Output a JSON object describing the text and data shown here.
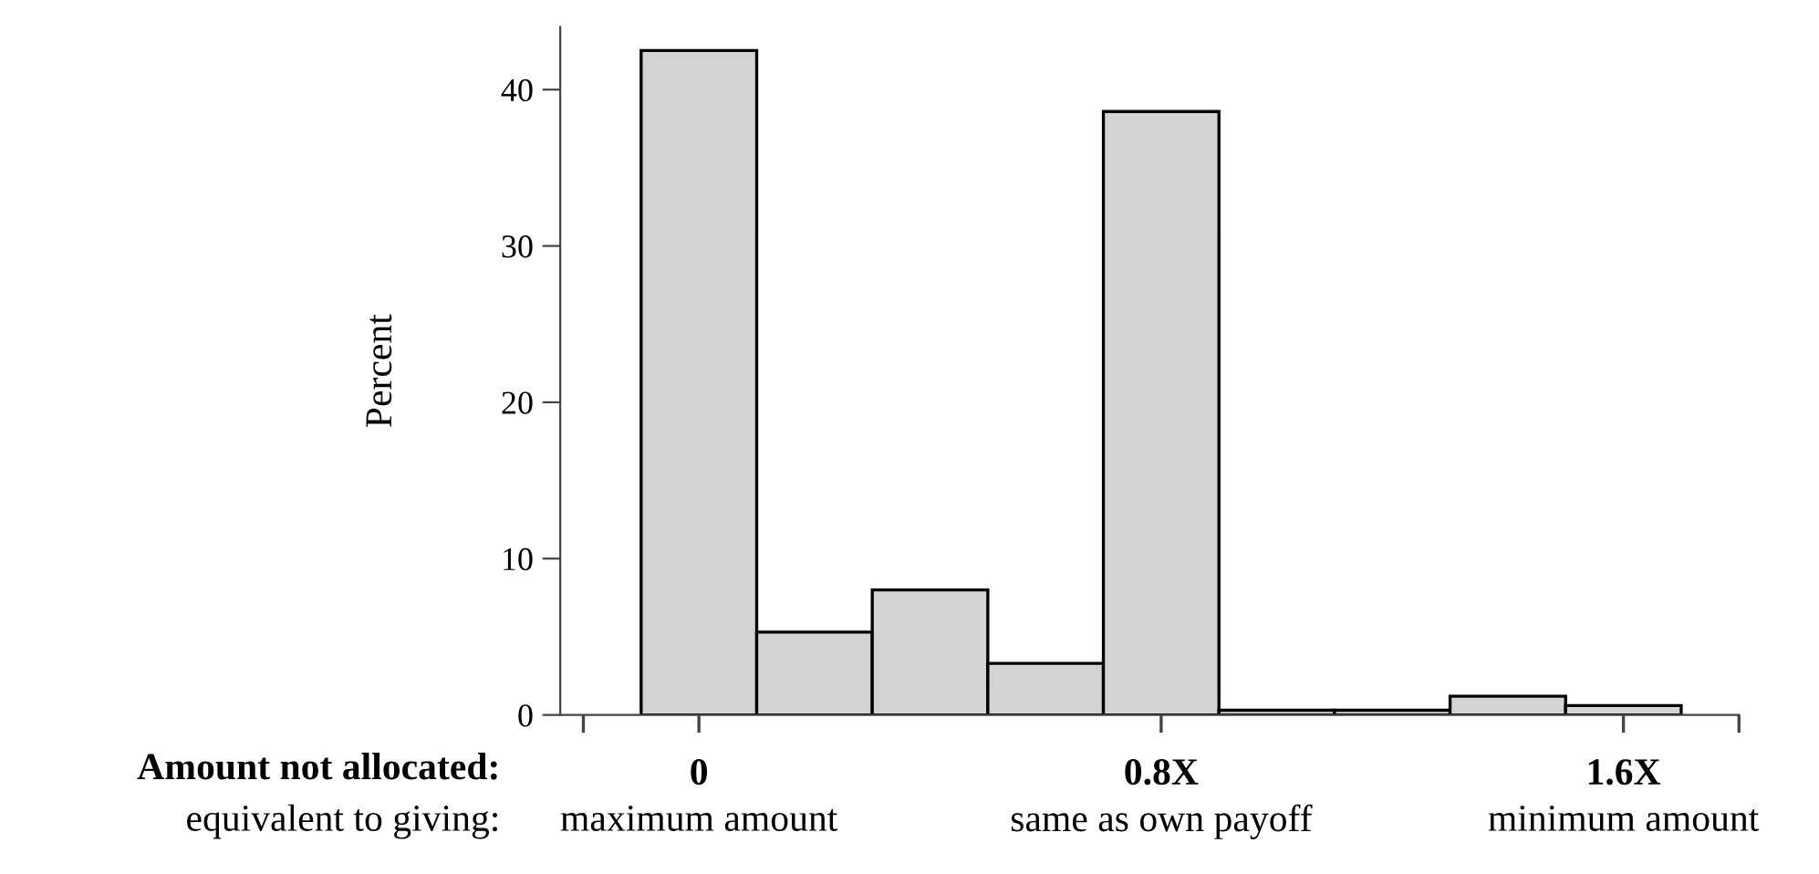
{
  "chart_data": {
    "type": "histogram",
    "ylabel": "Percent",
    "bins": [
      -0.1,
      0.1,
      0.3,
      0.5,
      0.7,
      0.9,
      1.1,
      1.3,
      1.5,
      1.7
    ],
    "values": [
      42.5,
      5.3,
      8.0,
      3.3,
      38.6,
      0.3,
      0.3,
      1.2,
      0.6
    ],
    "color": "#d3d3d3",
    "xlim": [
      -0.24,
      1.8
    ],
    "xticks": [
      {
        "value": -0.2,
        "label": null
      },
      {
        "value": 0,
        "label": "0"
      },
      {
        "value": 0.8,
        "label": "0.8X"
      },
      {
        "value": 1.6,
        "label": "1.6X"
      },
      {
        "value": 1.8,
        "label": null
      }
    ],
    "ylim": [
      0,
      44
    ],
    "yticks": [
      0,
      10,
      20,
      30,
      40
    ],
    "annotations": [
      "Amount not allocated:",
      "equivalent to giving:",
      "maximum amount",
      "same as own payoff",
      "minimum amount"
    ],
    "grid": false,
    "legend": false
  }
}
